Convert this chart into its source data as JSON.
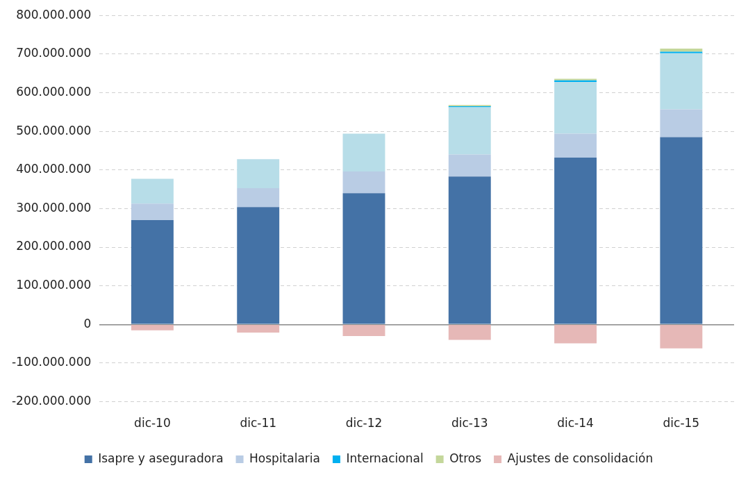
{
  "chart_data": {
    "type": "bar",
    "stacked": true,
    "categories": [
      "dic-10",
      "dic-11",
      "dic-12",
      "dic-13",
      "dic-14",
      "dic-15"
    ],
    "series": [
      {
        "name": "Isapre y aseguradora",
        "color": "#4472a6",
        "values": [
          270000000,
          304000000,
          340000000,
          383000000,
          432000000,
          485000000
        ]
      },
      {
        "name": "Hospitalaria",
        "color": "#b9cce4",
        "values": [
          43000000,
          49000000,
          56000000,
          57000000,
          62000000,
          72000000
        ]
      },
      {
        "color": "#b7dde8",
        "values": [
          64000000,
          75000000,
          98000000,
          122000000,
          134000000,
          145000000
        ]
      },
      {
        "name": "Internacional",
        "color": "#00b0f0",
        "values": [
          null,
          null,
          null,
          3000000,
          4000000,
          4000000
        ]
      },
      {
        "name": "Otros",
        "color": "#c4d79b",
        "values": [
          null,
          null,
          null,
          3000000,
          4000000,
          8000000
        ]
      },
      {
        "name": "Ajustes de consolidación",
        "color": "#e6b8b7",
        "values": [
          -15000000,
          -21000000,
          -30000000,
          -40000000,
          -49000000,
          -62000000
        ]
      }
    ],
    "ylim": [
      -200000000,
      800000000
    ],
    "yticks": [
      {
        "value": -200000000,
        "label": "-200.000.000"
      },
      {
        "value": -100000000,
        "label": "-100.000.000"
      },
      {
        "value": 0,
        "label": "0"
      },
      {
        "value": 100000000,
        "label": "100.000.000"
      },
      {
        "value": 200000000,
        "label": "200.000.000"
      },
      {
        "value": 300000000,
        "label": "300.000.000"
      },
      {
        "value": 400000000,
        "label": "400.000.000"
      },
      {
        "value": 500000000,
        "label": "500.000.000"
      },
      {
        "value": 600000000,
        "label": "600.000.000"
      },
      {
        "value": 700000000,
        "label": "700.000.000"
      },
      {
        "value": 800000000,
        "label": "800.000.000"
      }
    ],
    "grid": "y",
    "legend": "bottom"
  }
}
